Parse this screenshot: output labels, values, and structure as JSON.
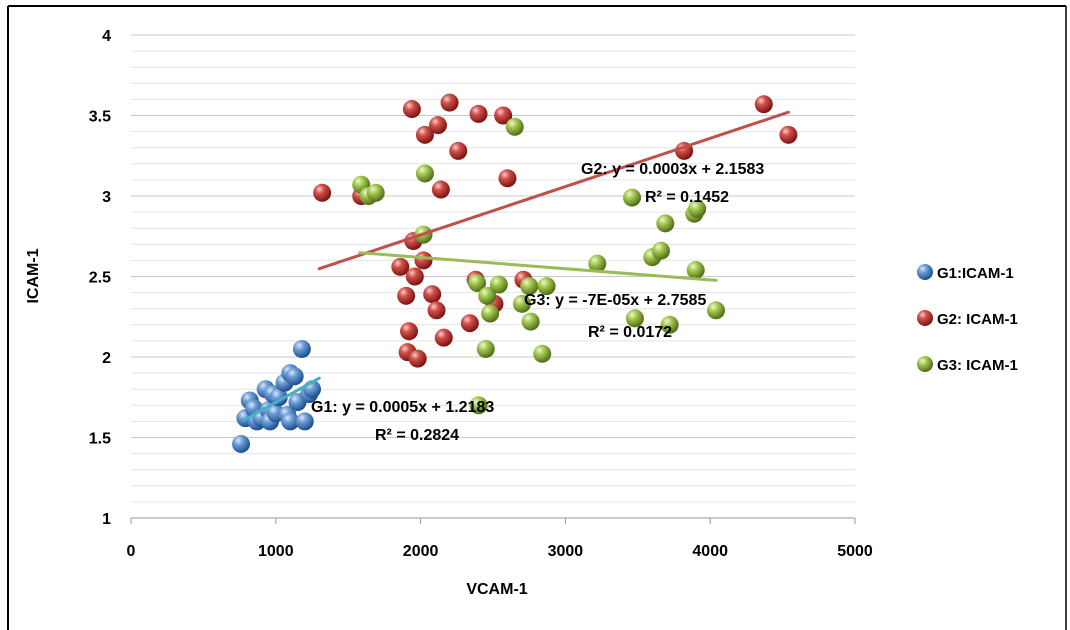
{
  "chart_data": {
    "type": "scatter",
    "title": "",
    "xlabel": "VCAM-1",
    "ylabel": "ICAM-1",
    "xlim": [
      0,
      5000
    ],
    "ylim": [
      1,
      4
    ],
    "xticks": [
      0,
      1000,
      2000,
      3000,
      4000,
      5000
    ],
    "yticks": [
      1,
      1.5,
      2,
      2.5,
      3,
      3.5,
      4
    ],
    "x_tick_labels": [
      "0",
      "1000",
      "2000",
      "3000",
      "4000",
      "5000"
    ],
    "y_tick_labels": [
      "1",
      "1.5",
      "2",
      "2.5",
      "3",
      "3.5",
      "4"
    ],
    "grid": "horizontal major and minor",
    "legend_position": "right",
    "series": [
      {
        "name": "G1:ICAM-1",
        "color": "#4a7ebb",
        "points": [
          [
            760,
            1.46
          ],
          [
            790,
            1.62
          ],
          [
            820,
            1.73
          ],
          [
            850,
            1.68
          ],
          [
            870,
            1.6
          ],
          [
            900,
            1.62
          ],
          [
            930,
            1.8
          ],
          [
            950,
            1.67
          ],
          [
            960,
            1.6
          ],
          [
            980,
            1.77
          ],
          [
            1000,
            1.65
          ],
          [
            1020,
            1.75
          ],
          [
            1060,
            1.84
          ],
          [
            1080,
            1.64
          ],
          [
            1100,
            1.6
          ],
          [
            1100,
            1.9
          ],
          [
            1130,
            1.88
          ],
          [
            1150,
            1.72
          ],
          [
            1180,
            2.05
          ],
          [
            1200,
            1.6
          ],
          [
            1230,
            1.77
          ],
          [
            1250,
            1.8
          ]
        ],
        "trendline": {
          "x": [
            780,
            1300
          ],
          "equation": "G1: y = 0.0005x + 1.2183",
          "r2": "R² = 0.2824",
          "color": "#4bacc6"
        }
      },
      {
        "name": "G2: ICAM-1",
        "color": "#c0392b",
        "points": [
          [
            1320,
            3.02
          ],
          [
            1590,
            3.0
          ],
          [
            1860,
            2.56
          ],
          [
            1900,
            2.38
          ],
          [
            1910,
            2.03
          ],
          [
            1920,
            2.16
          ],
          [
            1940,
            3.54
          ],
          [
            1950,
            2.72
          ],
          [
            1960,
            2.5
          ],
          [
            1980,
            1.99
          ],
          [
            2020,
            2.6
          ],
          [
            2030,
            3.38
          ],
          [
            2080,
            2.39
          ],
          [
            2110,
            2.29
          ],
          [
            2120,
            3.44
          ],
          [
            2140,
            3.04
          ],
          [
            2160,
            2.12
          ],
          [
            2200,
            3.58
          ],
          [
            2260,
            3.28
          ],
          [
            2340,
            2.21
          ],
          [
            2380,
            2.48
          ],
          [
            2400,
            3.51
          ],
          [
            2510,
            2.33
          ],
          [
            2570,
            3.5
          ],
          [
            2600,
            3.11
          ],
          [
            2710,
            2.48
          ],
          [
            3820,
            3.28
          ],
          [
            4370,
            3.57
          ],
          [
            4540,
            3.38
          ]
        ],
        "trendline": {
          "x": [
            1300,
            4540
          ],
          "equation": "G2: y = 0.0003x + 2.1583",
          "r2": "R² = 0.1452",
          "color": "#c0504d"
        }
      },
      {
        "name": "G3: ICAM-1",
        "color": "#9bbb59",
        "points": [
          [
            1590,
            3.07
          ],
          [
            1640,
            3.0
          ],
          [
            1690,
            3.02
          ],
          [
            2020,
            2.76
          ],
          [
            2030,
            3.14
          ],
          [
            2390,
            2.46
          ],
          [
            2400,
            1.7
          ],
          [
            2450,
            2.05
          ],
          [
            2460,
            2.38
          ],
          [
            2480,
            2.27
          ],
          [
            2540,
            2.45
          ],
          [
            2650,
            3.43
          ],
          [
            2700,
            2.33
          ],
          [
            2750,
            2.44
          ],
          [
            2760,
            2.22
          ],
          [
            2840,
            2.02
          ],
          [
            2870,
            2.44
          ],
          [
            3220,
            2.58
          ],
          [
            3460,
            2.99
          ],
          [
            3480,
            2.24
          ],
          [
            3600,
            2.62
          ],
          [
            3660,
            2.66
          ],
          [
            3690,
            2.83
          ],
          [
            3720,
            2.2
          ],
          [
            3890,
            2.89
          ],
          [
            3900,
            2.54
          ],
          [
            3910,
            2.92
          ],
          [
            4040,
            2.29
          ]
        ],
        "trendline": {
          "x": [
            1580,
            4040
          ],
          "equation": "G3: y = -7E-05x + 2.7585",
          "r2": "R² = 0.0172",
          "color": "#9bbb59"
        }
      }
    ],
    "annotations": {
      "g1_eq": "G1: y = 0.0005x + 1.2183",
      "g1_r2": "R² = 0.2824",
      "g2_eq": "G2: y = 0.0003x + 2.1583",
      "g2_r2": "R² = 0.1452",
      "g3_eq": "G3: y = -7E-05x + 2.7585",
      "g3_r2": "R² = 0.0172"
    }
  }
}
